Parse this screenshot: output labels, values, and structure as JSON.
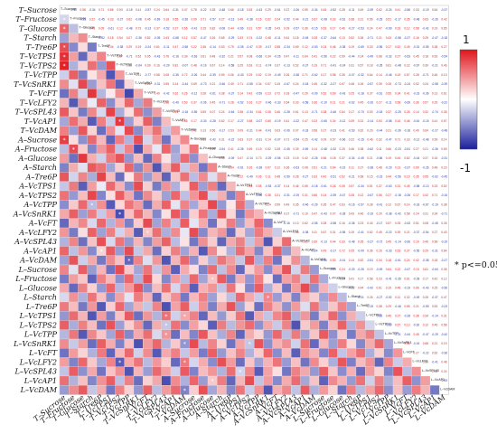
{
  "chart_data": {
    "type": "heatmap",
    "title": "",
    "variables": [
      "T–Sucrose",
      "T–Fructose",
      "T–Glucose",
      "T–Starch",
      "T–Tre6P",
      "T–VcTPS1",
      "T–VcTPS2",
      "T–VcTPP",
      "T–VcSnRK1",
      "T–VcFT",
      "T–VcLFY2",
      "T–VcSPL43",
      "T–VcAP1",
      "T–VcDAM",
      "A–Sucrose",
      "A–Fructose",
      "A–Glucose",
      "A–Starch",
      "A–Tre6P",
      "A–VcTPS1",
      "A–VcTPS2",
      "A–VcTPP",
      "A–VcSnRK1",
      "A–VcFT",
      "A–VcLFY2",
      "A–VcSPL43",
      "A–VcAP1",
      "A–VcDAM",
      "L–Sucrose",
      "L–Fructose",
      "L–Glucose",
      "L–Starch",
      "L–Tre6P",
      "L–VcTPS1",
      "L–VcTPS2",
      "L–VcTPP",
      "L–VcSnRK1",
      "L–VcFT",
      "L–VcLFY2",
      "L–VcSPL43",
      "L–VcAP1",
      "L–VcDAM"
    ],
    "diagonal_labels": [
      "T–Sucrose",
      "T–Fructose",
      "T–Glucose",
      "T–Starch",
      "T–Tre6P",
      "T–VcTPS1",
      "T–VcTPS2",
      "T–VcTPP",
      "T–VcSnRK1",
      "T–VcFT",
      "T–VcLFY2",
      "T–VcSPL43",
      "T–VcAP1",
      "T–VcDAM",
      "A–Sucrose",
      "A–Fructose",
      "A–Glucose",
      "A–Starch",
      "A–Tre6P",
      "A–VcTPS1",
      "A–VcTPS2",
      "A–VcTPP",
      "A–VcSnRK1",
      "A–VcFT",
      "A–VcLFY2",
      "A–VcSPL43",
      "A–VcAP1",
      "A–VcDAM",
      "L–Sucrose",
      "L–Fructose",
      "L–Glucose",
      "L–Starch",
      "L–Tre6P",
      "L–VcTPS1",
      "L–VcTPS2",
      "L–VcTPP",
      "L–VcSnRK1",
      "L–VcFT",
      "L–VcLFY2",
      "L–VcSPL43",
      "L–VcAP1",
      "L–VcDAM"
    ],
    "color_scale": {
      "min": -1,
      "max": 1,
      "low_color": "#1a1f9c",
      "mid_color": "#ffffff",
      "high_color": "#e0141c"
    },
    "colorbar_labels": {
      "max": "1",
      "min": "-1"
    },
    "significance_note": "* p<=0.05",
    "significance_marker": "*",
    "lower_triangle": "colored cells (correlation coefficients)",
    "upper_triangle": "correlation coefficients printed as numbers",
    "row_values": [
      [],
      [
        -0.12
      ],
      [
        0.58,
        -0.21
      ],
      [
        -0.34,
        0.22,
        0.41
      ],
      [
        0.71,
        -0.45,
        0.09,
        -0.52
      ],
      [
        0.86,
        0.33,
        -0.61,
        0.18,
        0.44
      ],
      [
        0.93,
        -0.27,
        0.12,
        0.54,
        -0.38,
        0.67
      ],
      [
        -0.15,
        0.62,
        -0.48,
        0.07,
        0.29,
        -0.71,
        0.35
      ],
      [
        0.41,
        -0.08,
        0.73,
        -0.36,
        0.19,
        0.52,
        -0.64,
        0.11
      ],
      [
        -0.57,
        0.46,
        -0.13,
        0.82,
        -0.24,
        0.05,
        0.39,
        -0.77,
        0.28
      ],
      [
        0.24,
        -0.69,
        0.37,
        -0.05,
        0.61,
        -0.43,
        0.16,
        0.58,
        -0.31,
        0.49
      ],
      [
        0.64,
        0.18,
        -0.52,
        0.43,
        -0.11,
        0.76,
        -0.29,
        0.08,
        0.55,
        -0.42,
        0.33
      ],
      [
        -0.31,
        0.55,
        0.27,
        -0.68,
        0.47,
        -0.16,
        0.81,
        -0.35,
        0.14,
        0.62,
        -0.49,
        0.21
      ],
      [
        0.47,
        -0.36,
        0.66,
        0.12,
        -0.58,
        0.39,
        -0.07,
        0.72,
        -0.44,
        0.26,
        0.53,
        -0.18,
        0.35
      ],
      [
        0.78,
        0.09,
        -0.41,
        0.57,
        0.22,
        -0.63,
        0.48,
        -0.26,
        0.69,
        -0.12,
        0.37,
        -0.55,
        0.17,
        0.42
      ],
      [
        -0.22,
        0.71,
        0.15,
        -0.47,
        0.36,
        0.61,
        -0.19,
        0.44,
        -0.73,
        0.28,
        -0.06,
        0.59,
        -0.33,
        0.13,
        0.51
      ],
      [
        0.35,
        -0.57,
        0.82,
        0.26,
        -0.14,
        0.48,
        0.67,
        -0.39,
        0.21,
        -0.61,
        0.45,
        0.07,
        -0.28,
        0.56,
        -0.42,
        0.19
      ],
      [
        -0.48,
        0.27,
        -0.08,
        0.65,
        0.53,
        -0.32,
        0.14,
        0.59,
        -0.46,
        0.38,
        -0.71,
        0.24,
        0.62,
        -0.17,
        0.31,
        -0.54,
        0.43
      ],
      [
        0.66,
        -0.13,
        0.44,
        -0.29,
        0.75,
        0.21,
        -0.58,
        0.06,
        0.49,
        -0.37,
        0.28,
        -0.64,
        0.17,
        0.53,
        -0.22,
        0.41,
        -0.09,
        0.34
      ],
      [
        -0.18,
        0.49,
        -0.66,
        0.33,
        -0.05,
        0.57,
        0.25,
        -0.43,
        0.71,
        0.14,
        -0.52,
        0.38,
        -0.27,
        0.09,
        0.63,
        -0.35,
        0.47,
        -0.61,
        0.22
      ],
      [
        0.53,
        -0.38,
        0.21,
        0.74,
        -0.47,
        0.08,
        0.63,
        0.29,
        -0.55,
        0.42,
        0.16,
        -0.34,
        0.58,
        -0.21,
        0.37,
        0.69,
        -0.14,
        0.26,
        -0.49,
        0.45
      ],
      [
        -0.43,
        0.16,
        0.57,
        -0.22,
        0.39,
        -0.68,
        0.11,
        0.52,
        0.34,
        -0.59,
        0.27,
        0.61,
        -0.07,
        0.44,
        -0.31,
        0.19,
        0.73,
        -0.38,
        0.06,
        0.55,
        -0.26
      ],
      [
        0.29,
        0.62,
        -0.35,
        0.48,
        -0.17,
        0.34,
        -0.74,
        0.19,
        0.57,
        0.23,
        -0.46,
        0.08,
        0.65,
        -0.41,
        0.14,
        0.52,
        -0.29,
        0.67,
        0.11,
        -0.53,
        0.38,
        0.24
      ],
      [
        -0.61,
        0.24,
        0.43,
        -0.11,
        0.58,
        -0.26,
        0.37,
        -0.49,
        0.15,
        0.72,
        -0.33,
        0.46,
        -0.19,
        0.63,
        -0.07,
        0.28,
        -0.56,
        0.12,
        0.48,
        -0.37,
        0.21,
        0.59,
        -0.44
      ],
      [
        0.37,
        -0.52,
        0.09,
        0.61,
        -0.34,
        0.47,
        -0.13,
        0.26,
        -0.67,
        0.18,
        0.54,
        -0.28,
        0.41,
        -0.06,
        0.71,
        -0.45,
        0.23,
        0.36,
        -0.59,
        0.14,
        -0.31,
        0.49,
        0.27,
        -0.16
      ],
      [
        -0.26,
        0.44,
        -0.57,
        0.18,
        0.69,
        -0.11,
        0.52,
        -0.38,
        0.24,
        -0.47,
        0.33,
        0.61,
        -0.22,
        0.07,
        -0.54,
        0.39,
        0.15,
        -0.63,
        0.28,
        0.46,
        -0.19,
        0.35,
        -0.71,
        0.13,
        0.56
      ],
      [
        0.59,
        -0.21,
        0.36,
        -0.45,
        0.12,
        0.64,
        -0.37,
        0.71,
        -0.18,
        0.29,
        -0.58,
        0.13,
        0.47,
        -0.33,
        0.25,
        -0.69,
        0.42,
        0.08,
        -0.27,
        0.55,
        0.31,
        -0.46,
        0.19,
        0.62,
        -0.38,
        0.21
      ],
      [
        -0.34,
        0.67,
        -0.15,
        0.28,
        -0.53,
        0.41,
        0.19,
        -0.62,
        0.45,
        -0.09,
        0.36,
        -0.71,
        0.23,
        0.58,
        -0.42,
        0.14,
        -0.26,
        0.51,
        0.33,
        -0.18,
        0.66,
        -0.29,
        0.47,
        -0.55,
        0.11,
        0.39,
        -0.24
      ],
      [
        0.45,
        -0.08,
        0.63,
        -0.37,
        0.24,
        -0.56,
        0.71,
        0.17,
        -0.32,
        0.52,
        -0.19,
        0.38,
        -0.65,
        0.27,
        0.09,
        -0.48,
        0.56,
        -0.21,
        0.42,
        -0.61,
        0.14,
        0.35,
        -0.43,
        0.28,
        0.67,
        -0.13,
        0.49,
        -0.36
      ],
      [
        -0.52,
        0.33,
        0.17,
        -0.64,
        0.46,
        0.22,
        -0.41,
        0.58,
        -0.27,
        0.69,
        0.11,
        -0.46,
        0.34,
        -0.23,
        0.57,
        -0.32,
        0.18,
        0.64,
        -0.51,
        0.26,
        -0.39,
        0.47,
        0.07,
        -0.58,
        0.31,
        0.44,
        -0.17,
        0.53,
        -0.29
      ],
      [
        0.28,
        -0.61,
        0.46,
        0.13,
        -0.38,
        0.59,
        -0.24,
        0.35,
        0.67,
        -0.43,
        0.21,
        0.54,
        -0.12,
        0.41,
        -0.66,
        0.25,
        0.37,
        -0.19,
        0.52,
        0.08,
        -0.47,
        0.63,
        -0.28,
        0.16,
        -0.55,
        0.33,
        0.72,
        -0.41,
        0.24,
        -0.14
      ],
      [
        -0.11,
        0.38,
        -0.27,
        0.52,
        0.19,
        -0.44,
        0.31,
        -0.07,
        0.48,
        0.25,
        -0.62,
        0.17,
        0.39,
        -0.53,
        0.22,
        0.46,
        -0.34,
        0.11,
        -0.21,
        0.57,
        0.28,
        -0.16,
        0.43,
        -0.36,
        0.19,
        -0.48,
        0.25,
        0.14,
        -0.33,
        0.41,
        -0.22
      ],
      [
        0.49,
        0.21,
        -0.53,
        0.36,
        -0.69,
        0.14,
        0.57,
        -0.32,
        0.26,
        -0.18,
        0.45,
        -0.73,
        0.31,
        0.62,
        -0.15,
        0.38,
        -0.49,
        0.27,
        0.68,
        -0.34,
        0.12,
        -0.57,
        0.46,
        0.23,
        -0.41,
        0.35,
        -0.09,
        0.52,
        -0.26,
        0.17,
        0.44,
        -0.31
      ],
      [
        -0.39,
        0.56,
        0.24,
        -0.71,
        0.33,
        -0.49,
        0.18,
        0.64,
        -0.57,
        0.37,
        -0.26,
        0.53,
        -0.14,
        0.29,
        0.46,
        -0.62,
        0.21,
        -0.38,
        0.15,
        0.51,
        -0.67,
        0.28,
        -0.19,
        0.43,
        0.62,
        -0.27,
        0.36,
        -0.51,
        0.19,
        0.58,
        -0.42,
        0.26,
        -0.15
      ],
      [
        0.62,
        -0.29,
        0.47,
        0.21,
        -0.56,
        0.68,
        -0.35,
        0.14,
        0.39,
        -0.61,
        0.27,
        -0.18,
        0.53,
        -0.44,
        0.32,
        0.11,
        -0.66,
        0.48,
        -0.23,
        0.37,
        0.56,
        -0.41,
        0.29,
        -0.17,
        0.45,
        -0.72,
        0.16,
        0.34,
        -0.49,
        0.23,
        0.61,
        -0.27,
        0.38,
        -0.12
      ],
      [
        -0.24,
        0.51,
        -0.69,
        0.43,
        0.17,
        -0.32,
        0.61,
        -0.46,
        0.28,
        0.55,
        -0.11,
        0.37,
        -0.58,
        0.21,
        -0.47,
        0.66,
        0.19,
        -0.29,
        0.44,
        -0.63,
        0.27,
        0.12,
        -0.38,
        0.57,
        -0.22,
        0.49,
        -0.33,
        0.18,
        0.64,
        -0.41,
        0.15,
        -0.52,
        0.29,
        0.46,
        -0.19
      ],
      [
        0.41,
        -0.17,
        0.33,
        -0.58,
        0.62,
        0.27,
        -0.48,
        0.19,
        -0.73,
        0.34,
        0.58,
        -0.25,
        0.16,
        -0.39,
        0.71,
        -0.23,
        0.44,
        0.13,
        -0.56,
        0.31,
        -0.18,
        0.67,
        -0.42,
        0.25,
        0.39,
        -0.14,
        0.53,
        -0.61,
        0.22,
        -0.35,
        0.48,
        0.11,
        -0.46,
        0.27,
        0.57,
        -0.31
      ],
      [
        -0.56,
        0.35,
        0.12,
        -0.27,
        0.49,
        -0.63,
        0.22,
        0.57,
        -0.14,
        0.41,
        -0.69,
        0.28,
        0.46,
        -0.18,
        0.33,
        -0.51,
        0.62,
        -0.37,
        0.19,
        0.45,
        -0.26,
        0.14,
        0.58,
        -0.43,
        0.21,
        -0.66,
        0.37,
        0.24,
        -0.47,
        0.61,
        -0.19,
        0.32,
        0.55,
        -0.28,
        0.13,
        -0.44,
        0.36
      ],
      [
        0.33,
        -0.48,
        0.58,
        0.16,
        -0.31,
        0.45,
        -0.67,
        0.28,
        0.52,
        -0.23,
        0.36,
        0.14,
        -0.61,
        0.49,
        -0.12,
        0.27,
        -0.44,
        0.69,
        0.35,
        -0.58,
        0.17,
        -0.33,
        0.24,
        0.51,
        -0.37,
        0.19,
        -0.55,
        0.42,
        0.13,
        -0.28,
        0.66,
        -0.49,
        0.21,
        0.38,
        -0.62,
        0.45,
        -0.16,
        0.27
      ],
      [
        -0.19,
        0.63,
        -0.42,
        0.29,
        -0.55,
        0.18,
        0.39,
        -0.71,
        0.24,
        -0.36,
        0.57,
        0.32,
        -0.15,
        0.64,
        -0.48,
        0.21,
        0.37,
        -0.26,
        0.55,
        -0.13,
        0.42,
        -0.67,
        0.31,
        0.08,
        -0.54,
        0.46,
        0.29,
        -0.38,
        0.61,
        0.17,
        -0.43,
        0.25,
        -0.59,
        0.34,
        0.12,
        -0.47,
        0.68,
        -0.22,
        0.39
      ],
      [
        0.54,
        -0.26,
        0.19,
        -0.47,
        0.38,
        0.63,
        -0.21,
        0.46,
        -0.58,
        0.13,
        0.29,
        -0.74,
        0.41,
        -0.27,
        0.59,
        -0.36,
        0.16,
        0.48,
        -0.62,
        0.23,
        0.71,
        -0.19,
        0.34,
        -0.45,
        0.27,
        0.56,
        -0.31,
        0.18,
        -0.64,
        0.42,
        0.25,
        -0.37,
        0.53,
        -0.14,
        0.46,
        -0.29,
        0.21,
        0.62,
        -0.41,
        0.33
      ],
      [
        -0.37,
        0.42,
        0.65,
        -0.18,
        0.27,
        -0.54,
        0.46,
        0.13,
        -0.39,
        0.61,
        -0.22,
        0.35,
        0.57,
        -0.48,
        0.14,
        0.69,
        -0.31,
        0.23,
        -0.45,
        0.52,
        -0.16,
        0.38,
        -0.71,
        0.26,
        0.43,
        -0.19,
        0.64,
        -0.27,
        0.35,
        0.12,
        -0.56,
        0.47,
        -0.23,
        0.31,
        0.58,
        -0.42,
        0.19,
        -0.36,
        0.48,
        0.24,
        -0.53
      ],
      [
        0.27,
        -0.59,
        0.34,
        0.52,
        -0.43,
        0.17,
        -0.28,
        0.66,
        0.38,
        -0.51,
        0.24,
        -0.37,
        0.18,
        0.55,
        -0.62,
        0.31,
        0.47,
        -0.14,
        0.28,
        -0.69,
        0.36,
        0.21,
        -0.47,
        0.58,
        -0.25,
        0.34,
        0.16,
        -0.53,
        0.41,
        -0.18,
        0.63,
        0.29,
        -0.38,
        0.57,
        -0.21,
        0.44,
        0.27,
        -0.61,
        0.33,
        0.15,
        -0.46,
        0.39
      ]
    ],
    "significant_cells": [
      [
        1,
        0
      ],
      [
        2,
        0
      ],
      [
        5,
        0
      ],
      [
        6,
        0
      ],
      [
        14,
        0
      ],
      [
        4,
        0
      ],
      [
        15,
        1
      ],
      [
        12,
        6
      ],
      [
        21,
        3
      ],
      [
        22,
        6
      ],
      [
        26,
        4
      ],
      [
        24,
        9
      ],
      [
        27,
        7
      ],
      [
        33,
        11
      ],
      [
        33,
        13
      ],
      [
        34,
        11
      ],
      [
        35,
        11
      ],
      [
        36,
        13
      ],
      [
        38,
        13
      ],
      [
        41,
        13
      ],
      [
        40,
        16
      ],
      [
        38,
        6
      ],
      [
        36,
        20
      ],
      [
        39,
        19
      ],
      [
        29,
        16
      ],
      [
        31,
        22
      ]
    ]
  }
}
